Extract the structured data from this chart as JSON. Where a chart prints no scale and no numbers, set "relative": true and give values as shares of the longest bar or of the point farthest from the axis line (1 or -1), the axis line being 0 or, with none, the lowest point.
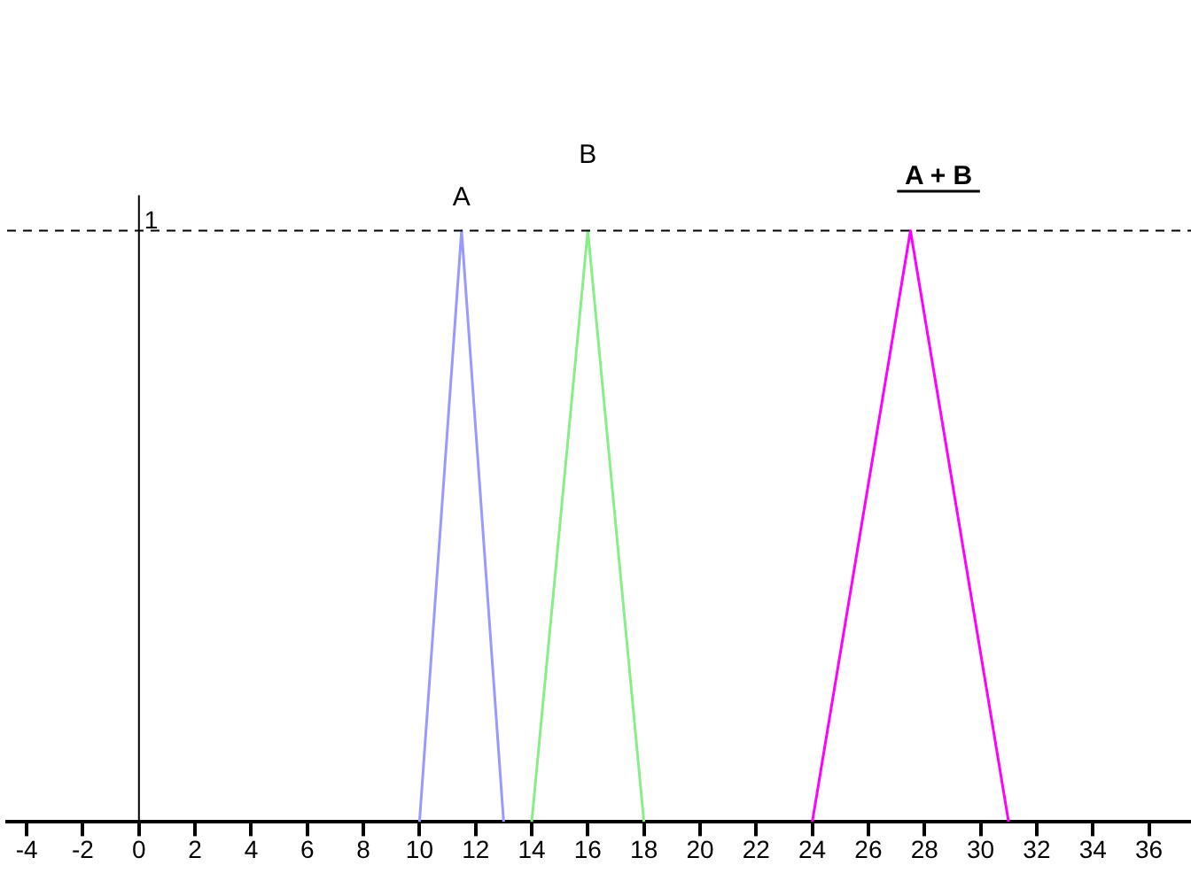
{
  "chart_data": {
    "type": "line",
    "relative": true,
    "grid": false,
    "legend": false,
    "marker": "none",
    "tick_labels": "x",
    "xlim": [
      -4.7,
      37.5
    ],
    "xticks": [
      -4,
      -2,
      0,
      2,
      4,
      6,
      8,
      10,
      12,
      14,
      16,
      18,
      20,
      22,
      24,
      26,
      28,
      30,
      32,
      34,
      36
    ],
    "series": [
      {
        "name": "A",
        "color": "#9999ff",
        "x": [
          10,
          11.5,
          13
        ],
        "values": [
          0,
          1,
          0
        ]
      },
      {
        "name": "B",
        "color": "#88ee88",
        "x": [
          14,
          16,
          18
        ],
        "values": [
          0,
          1,
          0
        ]
      },
      {
        "name": "A + B",
        "color": "#ff00ff",
        "x": [
          24,
          27.5,
          31
        ],
        "values": [
          0,
          1,
          0
        ]
      }
    ],
    "ref_lines": [
      {
        "axis": "y",
        "value": 1,
        "label": "1",
        "color": "#000000",
        "line_style": "dashed"
      },
      {
        "axis": "x",
        "value": 0,
        "color": "#000000",
        "line_style": "solid"
      }
    ]
  }
}
